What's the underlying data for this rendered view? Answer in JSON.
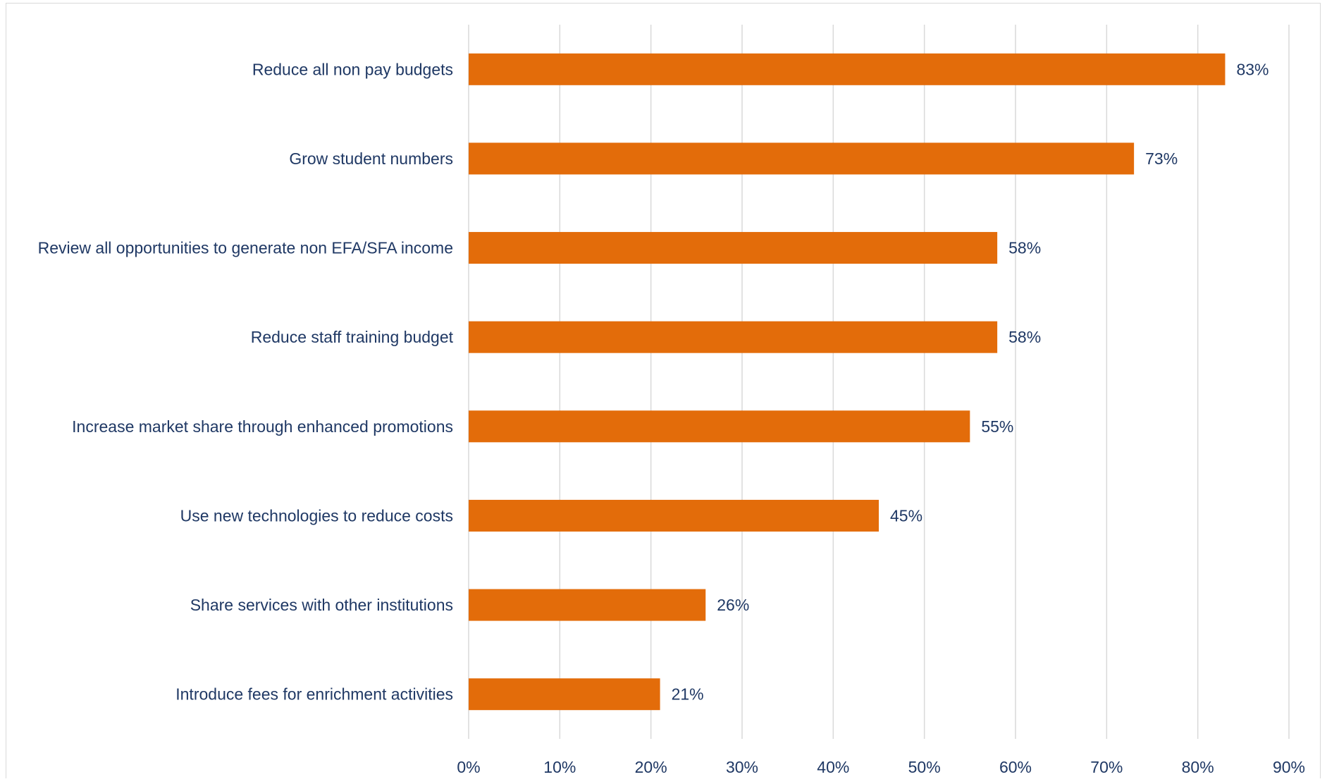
{
  "chart_data": {
    "type": "bar",
    "orientation": "horizontal",
    "categories": [
      "Reduce all non pay budgets",
      "Grow student numbers",
      "Review all opportunities to generate non EFA/SFA income",
      "Reduce staff training budget",
      "Increase market share through enhanced promotions",
      "Use new technologies to reduce costs",
      "Share services with other institutions",
      "Introduce fees for enrichment activities"
    ],
    "values": [
      83,
      73,
      58,
      58,
      55,
      45,
      26,
      21
    ],
    "value_labels": [
      "83%",
      "73%",
      "58%",
      "58%",
      "55%",
      "45%",
      "26%",
      "21%"
    ],
    "xlim": [
      0,
      90
    ],
    "xticks": [
      0,
      10,
      20,
      30,
      40,
      50,
      60,
      70,
      80,
      90
    ],
    "xtick_labels": [
      "0%",
      "10%",
      "20%",
      "30%",
      "40%",
      "50%",
      "60%",
      "70%",
      "80%",
      "90%"
    ],
    "title": "",
    "xlabel": "",
    "ylabel": "",
    "grid": "vertical",
    "legend": "none",
    "colors": {
      "bar": "#E36C0A",
      "text": "#1F3864",
      "grid": "#d9d9d9"
    }
  }
}
